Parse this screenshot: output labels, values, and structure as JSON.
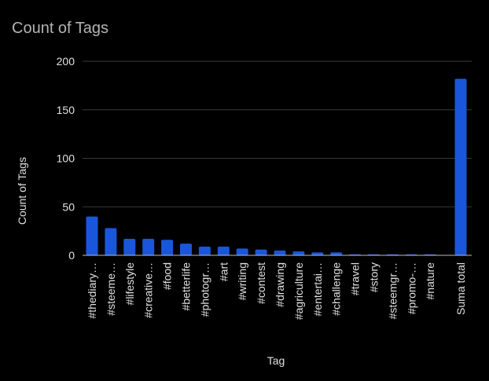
{
  "chart_data": {
    "type": "bar",
    "title": "Count of Tags",
    "xlabel": "Tag",
    "ylabel": "Count of Tags",
    "ylim": [
      0,
      200
    ],
    "yticks": [
      0,
      50,
      100,
      150,
      200
    ],
    "grid": true,
    "bar_color": "#1a56db",
    "categories": [
      "#thediary…",
      "#steeme…",
      "#lifestyle",
      "#creative…",
      "#food",
      "#betterlife",
      "#photogr…",
      "#art",
      "#writing",
      "#contest",
      "#drawing",
      "#agriculture",
      "#entertai…",
      "#challenge",
      "#travel",
      "#story",
      "#steemgr…",
      "#promo-…",
      "#nature",
      "Suma total"
    ],
    "values": [
      40,
      28,
      17,
      17,
      16,
      12,
      9,
      9,
      7,
      6,
      5,
      4,
      3,
      3,
      1,
      1,
      1,
      1,
      1,
      182
    ]
  }
}
